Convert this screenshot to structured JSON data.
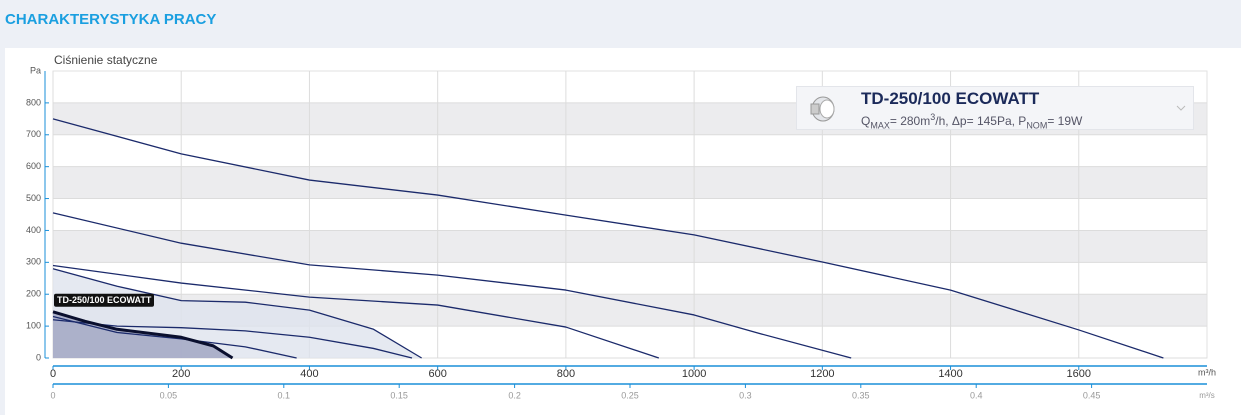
{
  "header": {
    "title": "CHARAKTERYSTYKA PRACY"
  },
  "chart_data": {
    "type": "line",
    "ylabel": "Ciśnienie statyczne",
    "yunit": "Pa",
    "xunit": "m³/h",
    "x2unit": "m³/s",
    "xlim": [
      0,
      1800
    ],
    "xticks": [
      0,
      200,
      400,
      600,
      800,
      1000,
      1200,
      1400,
      1600
    ],
    "x2lim": [
      0,
      0.5
    ],
    "x2ticks": [
      0,
      0.05,
      0.1,
      0.15,
      0.2,
      0.25,
      0.3,
      0.35,
      0.4,
      0.45
    ],
    "ylim": [
      0,
      900
    ],
    "yticks": [
      0,
      100,
      200,
      300,
      400,
      500,
      600,
      700,
      800
    ],
    "series": [
      {
        "color": "#1b2a6b",
        "x": [
          0,
          200,
          400,
          600,
          800,
          1000,
          1200,
          1400,
          1600,
          1732
        ],
        "values": [
          750,
          640,
          558,
          511,
          448,
          386,
          301,
          213,
          88,
          0
        ]
      },
      {
        "color": "#1b2a6b",
        "x": [
          0,
          200,
          400,
          600,
          800,
          1000,
          1100,
          1245
        ],
        "values": [
          455,
          360,
          292,
          260,
          213,
          135,
          78,
          0
        ]
      },
      {
        "color": "#1b2a6b",
        "x": [
          0,
          200,
          400,
          600,
          800,
          945
        ],
        "values": [
          290,
          235,
          191,
          166,
          97,
          0
        ]
      },
      {
        "color": "#1b2a6b",
        "fill": "#dfe3ee",
        "x": [
          0,
          100,
          200,
          300,
          400,
          500,
          575
        ],
        "values": [
          280,
          225,
          180,
          175,
          150,
          90,
          0
        ]
      },
      {
        "color": "#1b2a6b",
        "x": [
          0,
          100,
          200,
          300,
          400,
          500,
          560
        ],
        "values": [
          120,
          100,
          95,
          85,
          65,
          30,
          0
        ]
      },
      {
        "color": "#1b2a6b",
        "x": [
          0,
          100,
          200,
          300,
          380
        ],
        "values": [
          130,
          80,
          60,
          35,
          0
        ]
      },
      {
        "name": "TD-250/100 ECOWATT",
        "color": "#0a0f2e",
        "fill": "#9da3c0",
        "width": 3,
        "x": [
          0,
          50,
          100,
          200,
          250,
          280
        ],
        "values": [
          145,
          115,
          90,
          65,
          38,
          0
        ]
      }
    ],
    "product_info": [
      "Q",
      "MAX",
      "= 280m",
      "3",
      "/h, Δp= 145Pa, P",
      "NOM",
      "= 19W"
    ]
  }
}
